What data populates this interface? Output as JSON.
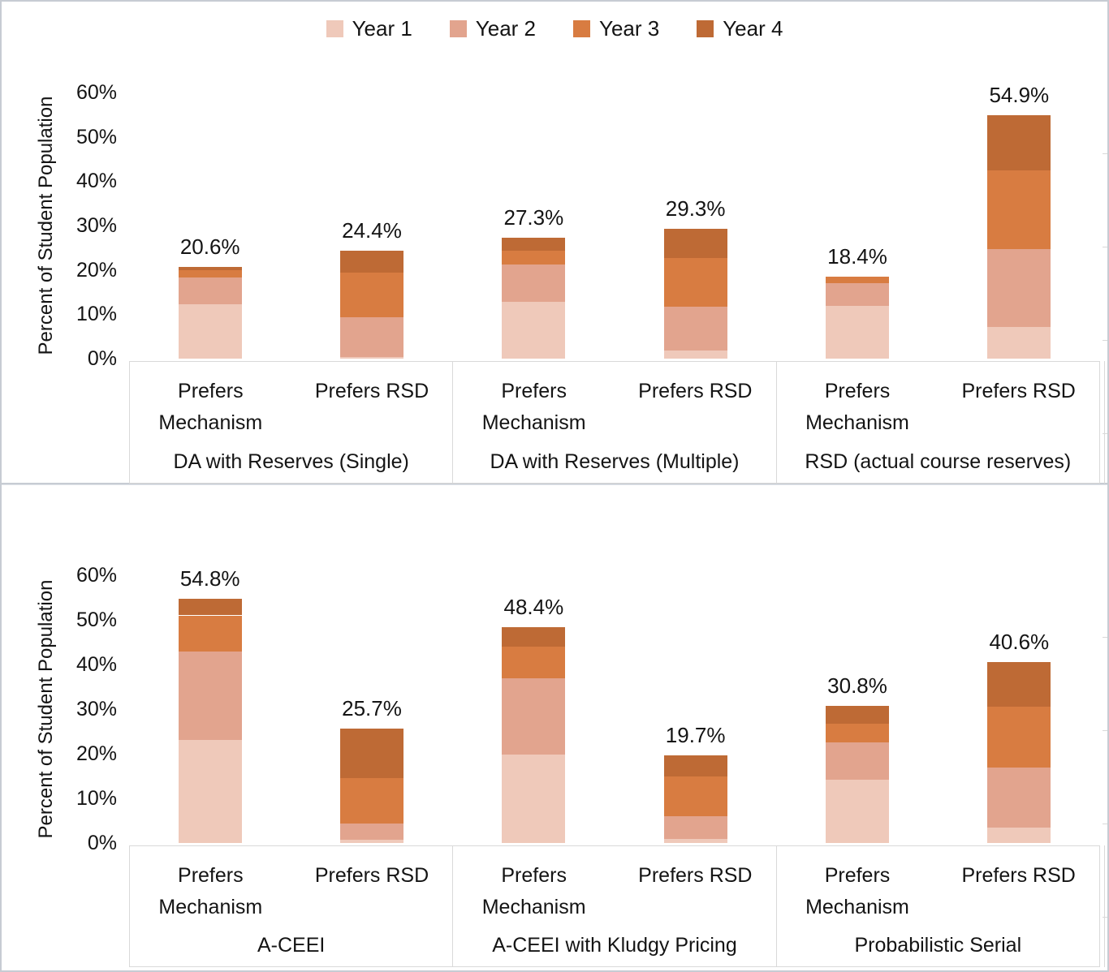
{
  "style": {
    "series_colors": [
      "#EFC9BA",
      "#E2A48E",
      "#D87C41",
      "#BE6A35"
    ],
    "text_color": "#141414",
    "axis_border_color": "#D9D9D9",
    "background": "#FFFFFF"
  },
  "legend": {
    "items": [
      {
        "label": "Year 1",
        "color": "#EFC9BA"
      },
      {
        "label": "Year 2",
        "color": "#E2A48E"
      },
      {
        "label": "Year 3",
        "color": "#D87C41"
      },
      {
        "label": "Year 4",
        "color": "#BE6A35"
      }
    ]
  },
  "chart_data": [
    {
      "type": "bar",
      "stacked": true,
      "title": "",
      "ylabel": "Percent of Student Population",
      "xlabel": "",
      "ylim": [
        0,
        60
      ],
      "yticks": [
        "0%",
        "10%",
        "20%",
        "30%",
        "40%",
        "50%",
        "60%"
      ],
      "grid": false,
      "legend_shown": true,
      "legend_position": "top-center",
      "series": [
        "Year 1",
        "Year 2",
        "Year 3",
        "Year 4"
      ],
      "groups": [
        {
          "label": "DA with Reserves (Single)",
          "bars": [
            {
              "category": "Prefers Mechanism",
              "total": "20.6%",
              "values": [
                12.2,
                6.1,
                1.7,
                0.6
              ]
            },
            {
              "category": "Prefers RSD",
              "total": "24.4%",
              "values": [
                0.3,
                9.0,
                10.1,
                5.0
              ]
            }
          ]
        },
        {
          "label": "DA with Reserves (Multiple)",
          "bars": [
            {
              "category": "Prefers Mechanism",
              "total": "27.3%",
              "values": [
                12.8,
                8.4,
                3.2,
                2.9
              ]
            },
            {
              "category": "Prefers RSD",
              "total": "29.3%",
              "values": [
                1.8,
                9.9,
                10.9,
                6.7
              ]
            }
          ]
        },
        {
          "label": "RSD (actual course reserves)",
          "bars": [
            {
              "category": "Prefers Mechanism",
              "total": "18.4%",
              "values": [
                11.9,
                5.1,
                1.4,
                0.0
              ]
            },
            {
              "category": "Prefers RSD",
              "total": "54.9%",
              "values": [
                7.2,
                17.5,
                17.8,
                12.4
              ]
            }
          ]
        }
      ]
    },
    {
      "type": "bar",
      "stacked": true,
      "title": "",
      "ylabel": "Percent of Student Population",
      "xlabel": "",
      "ylim": [
        0,
        60
      ],
      "yticks": [
        "0%",
        "10%",
        "20%",
        "30%",
        "40%",
        "50%",
        "60%"
      ],
      "grid": false,
      "legend_shown": false,
      "legend_position": "none",
      "series": [
        "Year 1",
        "Year 2",
        "Year 3",
        "Year 4"
      ],
      "groups": [
        {
          "label": "A-CEEI",
          "bars": [
            {
              "category": "Prefers Mechanism",
              "total": "54.8%",
              "values": [
                23.1,
                19.9,
                8.0,
                3.8
              ]
            },
            {
              "category": "Prefers RSD",
              "total": "25.7%",
              "values": [
                0.8,
                3.6,
                10.2,
                11.1
              ]
            }
          ]
        },
        {
          "label": "A-CEEI with Kludgy Pricing",
          "bars": [
            {
              "category": "Prefers Mechanism",
              "total": "48.4%",
              "values": [
                19.9,
                17.0,
                7.1,
                4.4
              ]
            },
            {
              "category": "Prefers RSD",
              "total": "19.7%",
              "values": [
                1.0,
                5.0,
                8.9,
                4.8
              ]
            }
          ]
        },
        {
          "label": "Probabilistic Serial",
          "bars": [
            {
              "category": "Prefers Mechanism",
              "total": "30.8%",
              "values": [
                14.1,
                8.4,
                4.2,
                4.1
              ]
            },
            {
              "category": "Prefers RSD",
              "total": "40.6%",
              "values": [
                3.5,
                13.4,
                13.6,
                10.1
              ]
            }
          ]
        }
      ]
    }
  ]
}
